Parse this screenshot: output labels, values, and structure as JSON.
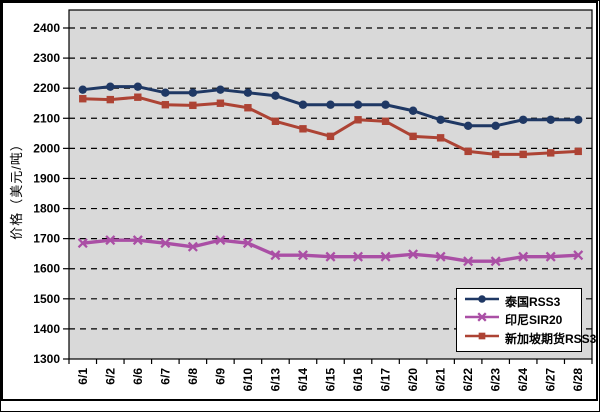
{
  "chart_data": {
    "type": "line",
    "title": "",
    "xlabel": "",
    "ylabel": "价格（美元/吨）",
    "ylim": [
      1300,
      2400
    ],
    "y_ticks": [
      2400,
      2300,
      2200,
      2100,
      2000,
      1900,
      1800,
      1700,
      1600,
      1500,
      1400,
      1300
    ],
    "grid": "horizontal-dashed",
    "plot_bg": "#d9d9d9",
    "legend_position": "bottom-right",
    "categories": [
      "6/1",
      "6/2",
      "6/6",
      "6/7",
      "6/8",
      "6/9",
      "6/10",
      "6/13",
      "6/14",
      "6/15",
      "6/16",
      "6/17",
      "6/20",
      "6/21",
      "6/22",
      "6/23",
      "6/24",
      "6/27",
      "6/28"
    ],
    "series": [
      {
        "name": "泰国RSS3",
        "color": "#1f3864",
        "marker": "circle",
        "values": [
          2195,
          2205,
          2205,
          2185,
          2185,
          2195,
          2185,
          2175,
          2145,
          2145,
          2145,
          2145,
          2125,
          2095,
          2075,
          2075,
          2095,
          2095,
          2095
        ]
      },
      {
        "name": "印尼SIR20",
        "color": "#aa4fa5",
        "marker": "x",
        "values": [
          1685,
          1695,
          1695,
          1685,
          1673,
          1695,
          1685,
          1645,
          1645,
          1640,
          1640,
          1640,
          1648,
          1640,
          1625,
          1625,
          1640,
          1640,
          1645
        ]
      },
      {
        "name": "新加坡期货RSS3",
        "color": "#ad4334",
        "marker": "square",
        "values": [
          2165,
          2162,
          2170,
          2145,
          2143,
          2150,
          2135,
          2090,
          2065,
          2040,
          2095,
          2090,
          2040,
          2035,
          1990,
          1980,
          1980,
          1985,
          1990
        ]
      }
    ]
  }
}
